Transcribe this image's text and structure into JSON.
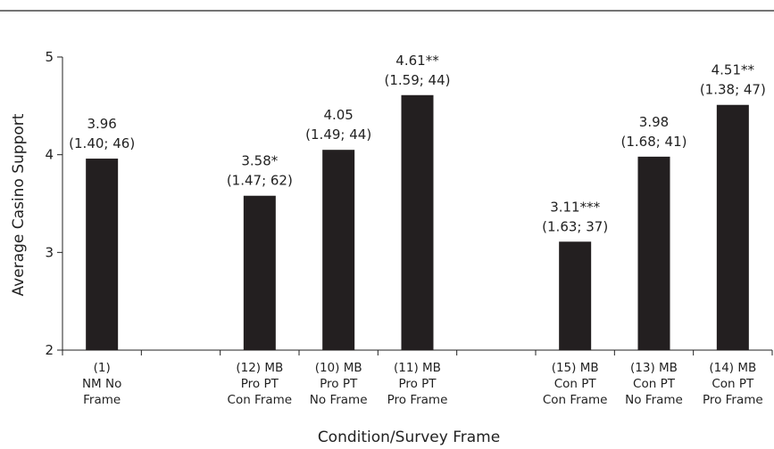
{
  "chart_data": {
    "type": "bar",
    "xlabel": "Condition/Survey Frame",
    "ylabel": "Average Casino Support",
    "ylim": [
      2,
      5
    ],
    "yticks": [
      "2",
      "3",
      "4",
      "5"
    ],
    "grid": false,
    "bar_color": "#231f20",
    "categories": [
      {
        "lines": [
          "(1)",
          "NM No",
          "Frame"
        ],
        "value": 3.96,
        "label": [
          "3.96",
          "(1.40; 46)"
        ]
      },
      {
        "lines": [],
        "value": null,
        "label": []
      },
      {
        "lines": [
          "(12) MB",
          "Pro PT",
          "Con Frame"
        ],
        "value": 3.58,
        "label": [
          "3.58*",
          "(1.47; 62)"
        ]
      },
      {
        "lines": [
          "(10) MB",
          "Pro PT",
          "No Frame"
        ],
        "value": 4.05,
        "label": [
          "4.05",
          "(1.49; 44)"
        ]
      },
      {
        "lines": [
          "(11) MB",
          "Pro PT",
          "Pro Frame"
        ],
        "value": 4.61,
        "label": [
          "4.61**",
          "(1.59; 44)"
        ]
      },
      {
        "lines": [],
        "value": null,
        "label": []
      },
      {
        "lines": [
          "(15) MB",
          "Con PT",
          "Con Frame"
        ],
        "value": 3.11,
        "label": [
          "3.11***",
          "(1.63; 37)"
        ]
      },
      {
        "lines": [
          "(13) MB",
          "Con PT",
          "No Frame"
        ],
        "value": 3.98,
        "label": [
          "3.98",
          "(1.68; 41)"
        ]
      },
      {
        "lines": [
          "(14) MB",
          "Con PT",
          "Pro Frame"
        ],
        "value": 4.51,
        "label": [
          "4.51**",
          "(1.38; 47)"
        ]
      }
    ]
  }
}
